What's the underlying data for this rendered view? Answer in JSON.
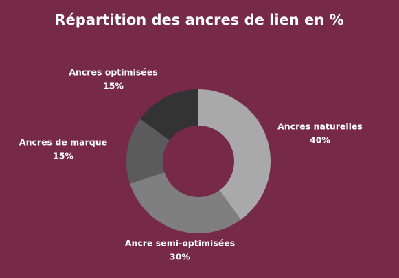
{
  "chart_data": {
    "type": "donut",
    "title": "Répartition des ancres de lien en %",
    "categories": [
      "Ancres naturelles",
      "Ancre semi-optimisées",
      "Ancres de marque",
      "Ancres optimisées"
    ],
    "values": [
      40,
      30,
      15,
      15
    ],
    "value_labels": [
      "40%",
      "30%",
      "15%",
      "15%"
    ],
    "colors": [
      "#a9a9a9",
      "#7f7f7f",
      "#5b5b5b",
      "#333333"
    ]
  }
}
